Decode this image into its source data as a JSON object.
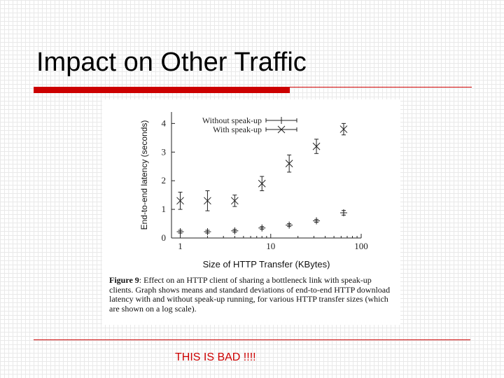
{
  "slide": {
    "title": "Impact on Other Traffic",
    "footer_note": "THIS IS BAD !!!!"
  },
  "colors": {
    "accent_red": "#cc0000",
    "footer_red": "#cc0000"
  },
  "caption": {
    "label": "Figure 9",
    "text": ": Effect on an HTTP client of sharing a bottleneck link with speak-up clients. Graph shows means and standard deviations of end-to-end HTTP download latency with and without speak-up running, for various HTTP transfer sizes (which are shown on a log scale)."
  },
  "chart_data": {
    "type": "scatter",
    "title": "",
    "xlabel": "Size of HTTP Transfer (KBytes)",
    "ylabel": "End-to-end latency (seconds)",
    "xscale": "log",
    "xlim": [
      0.8,
      100
    ],
    "ylim": [
      0,
      4.4
    ],
    "x_ticks": [
      "1",
      "10",
      "100"
    ],
    "y_ticks": [
      "0",
      "1",
      "2",
      "3",
      "4"
    ],
    "grid": false,
    "legend_position": "top-right",
    "series": [
      {
        "name": "Without speak-up",
        "marker": "plus",
        "points": [
          {
            "x": 1,
            "y": 0.22,
            "sd": 0.05
          },
          {
            "x": 2,
            "y": 0.22,
            "sd": 0.05
          },
          {
            "x": 4,
            "y": 0.25,
            "sd": 0.05
          },
          {
            "x": 8,
            "y": 0.35,
            "sd": 0.05
          },
          {
            "x": 16,
            "y": 0.45,
            "sd": 0.05
          },
          {
            "x": 32,
            "y": 0.6,
            "sd": 0.05
          },
          {
            "x": 64,
            "y": 0.88,
            "sd": 0.08
          }
        ]
      },
      {
        "name": "With speak-up",
        "marker": "cross",
        "points": [
          {
            "x": 1,
            "y": 1.3,
            "sd": 0.3
          },
          {
            "x": 2,
            "y": 1.3,
            "sd": 0.35
          },
          {
            "x": 4,
            "y": 1.3,
            "sd": 0.2
          },
          {
            "x": 8,
            "y": 1.9,
            "sd": 0.25
          },
          {
            "x": 16,
            "y": 2.6,
            "sd": 0.3
          },
          {
            "x": 32,
            "y": 3.2,
            "sd": 0.25
          },
          {
            "x": 64,
            "y": 3.8,
            "sd": 0.2
          }
        ]
      }
    ]
  }
}
